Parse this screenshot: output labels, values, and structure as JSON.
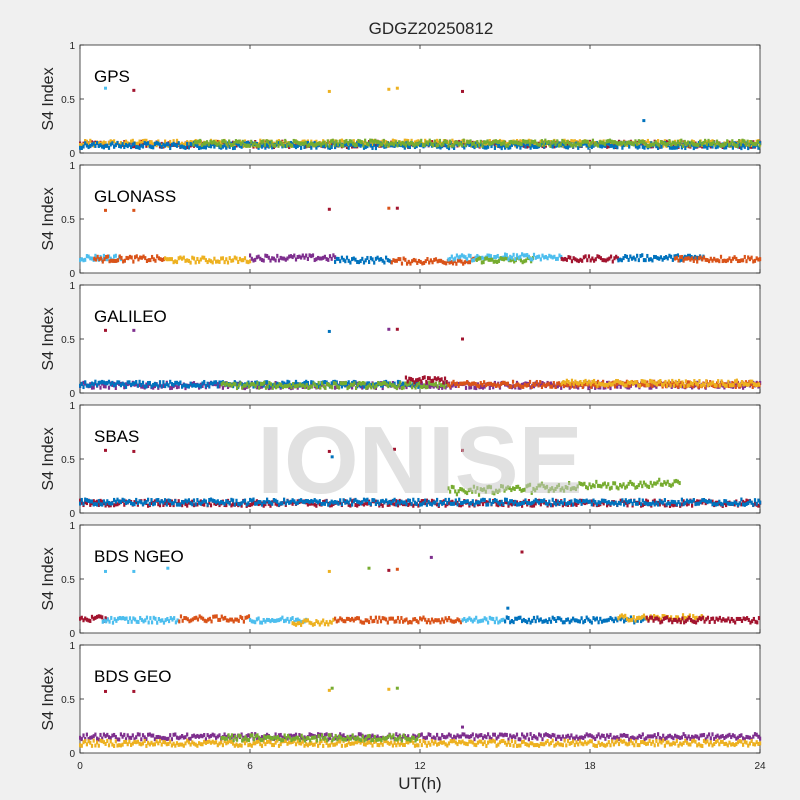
{
  "chart_data": {
    "type": "scatter",
    "title": "GDGZ20250812",
    "xlabel": "UT(h)",
    "ylabel": "S4 Index",
    "xlim": [
      0,
      24
    ],
    "ylim": [
      0,
      1
    ],
    "xticks": [
      "0",
      "6",
      "12",
      "18",
      "24"
    ],
    "yticks": [
      "0",
      "0.5",
      "1"
    ],
    "watermark": "IONISE",
    "series_colors": [
      "#0072BD",
      "#D95319",
      "#EDB120",
      "#7E2F8E",
      "#77AC30",
      "#4DBEEE",
      "#A2142F"
    ],
    "panels": [
      {
        "label": "GPS",
        "baseline_level": 0.08,
        "baseline_segments": [
          {
            "from": 0,
            "to": 24,
            "level": 0.08,
            "color": "#A2142F"
          },
          {
            "from": 0,
            "to": 24,
            "level": 0.09,
            "color": "#EDB120"
          },
          {
            "from": 0,
            "to": 24,
            "level": 0.07,
            "color": "#0072BD"
          },
          {
            "from": 4,
            "to": 24,
            "level": 0.09,
            "color": "#77AC30"
          }
        ],
        "outliers": [
          {
            "x": 0.9,
            "y": 0.6,
            "color": "#4DBEEE"
          },
          {
            "x": 1.9,
            "y": 0.58,
            "color": "#A2142F"
          },
          {
            "x": 8.8,
            "y": 0.57,
            "color": "#EDB120"
          },
          {
            "x": 10.9,
            "y": 0.59,
            "color": "#EDB120"
          },
          {
            "x": 11.2,
            "y": 0.6,
            "color": "#EDB120"
          },
          {
            "x": 13.5,
            "y": 0.57,
            "color": "#A2142F"
          },
          {
            "x": 19.9,
            "y": 0.3,
            "color": "#0072BD"
          }
        ]
      },
      {
        "label": "GLONASS",
        "baseline_level": 0.13,
        "baseline_segments": [
          {
            "from": 0,
            "to": 1.5,
            "level": 0.14,
            "color": "#4DBEEE"
          },
          {
            "from": 0.5,
            "to": 3,
            "level": 0.13,
            "color": "#D95319"
          },
          {
            "from": 3,
            "to": 6,
            "level": 0.12,
            "color": "#EDB120"
          },
          {
            "from": 6,
            "to": 9,
            "level": 0.14,
            "color": "#7E2F8E"
          },
          {
            "from": 9,
            "to": 11,
            "level": 0.12,
            "color": "#0072BD"
          },
          {
            "from": 11,
            "to": 14,
            "level": 0.11,
            "color": "#D95319"
          },
          {
            "from": 13,
            "to": 15,
            "level": 0.14,
            "color": "#4DBEEE"
          },
          {
            "from": 14,
            "to": 16,
            "level": 0.12,
            "color": "#77AC30"
          },
          {
            "from": 15,
            "to": 17,
            "level": 0.15,
            "color": "#4DBEEE"
          },
          {
            "from": 17,
            "to": 19,
            "level": 0.13,
            "color": "#A2142F"
          },
          {
            "from": 19,
            "to": 22,
            "level": 0.14,
            "color": "#0072BD"
          },
          {
            "from": 21,
            "to": 24,
            "level": 0.13,
            "color": "#D95319"
          }
        ],
        "outliers": [
          {
            "x": 0.9,
            "y": 0.58,
            "color": "#D95319"
          },
          {
            "x": 1.9,
            "y": 0.58,
            "color": "#D95319"
          },
          {
            "x": 8.8,
            "y": 0.59,
            "color": "#A2142F"
          },
          {
            "x": 10.9,
            "y": 0.6,
            "color": "#D95319"
          },
          {
            "x": 11.2,
            "y": 0.6,
            "color": "#A2142F"
          }
        ]
      },
      {
        "label": "GALILEO",
        "baseline_level": 0.07,
        "baseline_segments": [
          {
            "from": 0,
            "to": 24,
            "level": 0.07,
            "color": "#7E2F8E"
          },
          {
            "from": 0,
            "to": 12,
            "level": 0.08,
            "color": "#0072BD"
          },
          {
            "from": 5,
            "to": 13,
            "level": 0.07,
            "color": "#77AC30"
          },
          {
            "from": 11.5,
            "to": 13,
            "level": 0.12,
            "color": "#A2142F"
          },
          {
            "from": 13,
            "to": 24,
            "level": 0.08,
            "color": "#D95319"
          },
          {
            "from": 17,
            "to": 24,
            "level": 0.09,
            "color": "#EDB120"
          }
        ],
        "outliers": [
          {
            "x": 0.9,
            "y": 0.58,
            "color": "#A2142F"
          },
          {
            "x": 1.9,
            "y": 0.58,
            "color": "#7E2F8E"
          },
          {
            "x": 8.8,
            "y": 0.57,
            "color": "#0072BD"
          },
          {
            "x": 10.9,
            "y": 0.59,
            "color": "#7E2F8E"
          },
          {
            "x": 11.2,
            "y": 0.59,
            "color": "#A2142F"
          },
          {
            "x": 13.5,
            "y": 0.5,
            "color": "#A2142F"
          }
        ]
      },
      {
        "label": "SBAS",
        "baseline_level": 0.09,
        "baseline_segments": [
          {
            "from": 0,
            "to": 24,
            "level": 0.09,
            "color": "#A2142F"
          },
          {
            "from": 0,
            "to": 24,
            "level": 0.1,
            "color": "#0072BD"
          },
          {
            "from": 13,
            "to": 21.2,
            "level": 0.2,
            "color": "#77AC30"
          }
        ],
        "outliers": [
          {
            "x": 0.9,
            "y": 0.58,
            "color": "#A2142F"
          },
          {
            "x": 1.9,
            "y": 0.57,
            "color": "#A2142F"
          },
          {
            "x": 8.8,
            "y": 0.57,
            "color": "#A2142F"
          },
          {
            "x": 8.9,
            "y": 0.52,
            "color": "#0072BD"
          },
          {
            "x": 11.1,
            "y": 0.59,
            "color": "#A2142F"
          },
          {
            "x": 13.5,
            "y": 0.58,
            "color": "#A2142F"
          }
        ]
      },
      {
        "label": "BDS NGEO",
        "baseline_level": 0.12,
        "baseline_segments": [
          {
            "from": 0,
            "to": 1,
            "level": 0.13,
            "color": "#A2142F"
          },
          {
            "from": 0.8,
            "to": 3.5,
            "level": 0.12,
            "color": "#4DBEEE"
          },
          {
            "from": 3.5,
            "to": 6,
            "level": 0.13,
            "color": "#D95319"
          },
          {
            "from": 6,
            "to": 8,
            "level": 0.12,
            "color": "#4DBEEE"
          },
          {
            "from": 7.5,
            "to": 9,
            "level": 0.1,
            "color": "#EDB120"
          },
          {
            "from": 9,
            "to": 13.5,
            "level": 0.12,
            "color": "#D95319"
          },
          {
            "from": 13.5,
            "to": 15,
            "level": 0.12,
            "color": "#4DBEEE"
          },
          {
            "from": 15,
            "to": 20,
            "level": 0.12,
            "color": "#0072BD"
          },
          {
            "from": 19,
            "to": 22,
            "level": 0.14,
            "color": "#EDB120"
          },
          {
            "from": 20,
            "to": 24,
            "level": 0.12,
            "color": "#A2142F"
          }
        ],
        "outliers": [
          {
            "x": 0.9,
            "y": 0.57,
            "color": "#4DBEEE"
          },
          {
            "x": 1.9,
            "y": 0.57,
            "color": "#4DBEEE"
          },
          {
            "x": 3.1,
            "y": 0.6,
            "color": "#4DBEEE"
          },
          {
            "x": 8.8,
            "y": 0.57,
            "color": "#EDB120"
          },
          {
            "x": 10.2,
            "y": 0.6,
            "color": "#77AC30"
          },
          {
            "x": 10.9,
            "y": 0.58,
            "color": "#A2142F"
          },
          {
            "x": 11.2,
            "y": 0.59,
            "color": "#D95319"
          },
          {
            "x": 12.4,
            "y": 0.7,
            "color": "#7E2F8E"
          },
          {
            "x": 15.6,
            "y": 0.75,
            "color": "#A2142F"
          },
          {
            "x": 15.1,
            "y": 0.23,
            "color": "#0072BD"
          }
        ]
      },
      {
        "label": "BDS GEO",
        "baseline_level": 0.13,
        "baseline_segments": [
          {
            "from": 0,
            "to": 24,
            "level": 0.15,
            "color": "#7E2F8E"
          },
          {
            "from": 0,
            "to": 24,
            "level": 0.09,
            "color": "#EDB120"
          },
          {
            "from": 5,
            "to": 12,
            "level": 0.14,
            "color": "#77AC30"
          }
        ],
        "outliers": [
          {
            "x": 0.9,
            "y": 0.57,
            "color": "#A2142F"
          },
          {
            "x": 1.9,
            "y": 0.57,
            "color": "#A2142F"
          },
          {
            "x": 8.8,
            "y": 0.58,
            "color": "#EDB120"
          },
          {
            "x": 8.9,
            "y": 0.6,
            "color": "#77AC30"
          },
          {
            "x": 10.9,
            "y": 0.59,
            "color": "#EDB120"
          },
          {
            "x": 11.2,
            "y": 0.6,
            "color": "#77AC30"
          },
          {
            "x": 13.5,
            "y": 0.24,
            "color": "#7E2F8E"
          }
        ]
      }
    ]
  }
}
